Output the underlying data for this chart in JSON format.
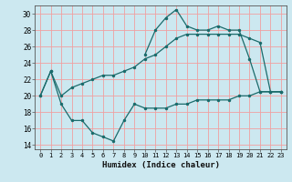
{
  "xlabel": "Humidex (Indice chaleur)",
  "bg_color": "#cce8f0",
  "grid_color": "#f0a0a0",
  "line_color": "#1a6b6b",
  "xlim": [
    -0.5,
    23.5
  ],
  "ylim": [
    13.5,
    31.0
  ],
  "xticks": [
    0,
    1,
    2,
    3,
    4,
    5,
    6,
    7,
    8,
    9,
    10,
    11,
    12,
    13,
    14,
    15,
    16,
    17,
    18,
    19,
    20,
    21,
    22,
    23
  ],
  "yticks": [
    14,
    16,
    18,
    20,
    22,
    24,
    26,
    28,
    30
  ],
  "line_bottom_x": [
    0,
    1,
    2,
    3,
    4,
    5,
    6,
    7,
    8,
    9,
    10,
    11,
    12,
    13,
    14,
    15,
    16,
    17,
    18,
    19,
    20,
    21,
    22,
    23
  ],
  "line_bottom_y": [
    20,
    23,
    19,
    17,
    17,
    15.5,
    15,
    14.5,
    17,
    19,
    18.5,
    18.5,
    18.5,
    19,
    19,
    19.5,
    19.5,
    19.5,
    19.5,
    20,
    20,
    20.5,
    20.5,
    20.5
  ],
  "line_top_x": [
    10,
    11,
    12,
    13,
    14,
    15,
    16,
    17,
    18,
    19,
    20,
    21,
    22,
    23
  ],
  "line_top_y": [
    25,
    28,
    29.5,
    30.5,
    28.5,
    28,
    28,
    28.5,
    28,
    28,
    24.5,
    20.5,
    20.5,
    20.5
  ],
  "line_mid_x": [
    0,
    1,
    2,
    3,
    4,
    5,
    6,
    7,
    8,
    9,
    10,
    11,
    12,
    13,
    14,
    15,
    16,
    17,
    18,
    19,
    20,
    21,
    22,
    23
  ],
  "line_mid_y": [
    20,
    23,
    20,
    21,
    21.5,
    22,
    22.5,
    22.5,
    23,
    23.5,
    24.5,
    25,
    26,
    27,
    27.5,
    27.5,
    27.5,
    27.5,
    27.5,
    27.5,
    27,
    26.5,
    20.5,
    20.5
  ],
  "marker_size": 2.5,
  "linewidth": 0.9
}
